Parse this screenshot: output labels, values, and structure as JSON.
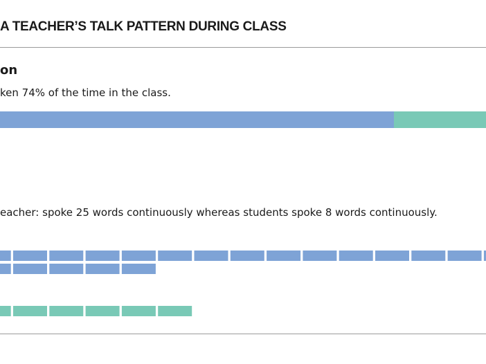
{
  "header": {
    "title": "A TEACHER’S TALK PATTERN DURING CLASS"
  },
  "section": {
    "heading": "on",
    "summary": "ken 74% of the time in the class.",
    "detail": "eacher: spoke 25 words continuously whereas students spoke 8 words continuously."
  }
}
